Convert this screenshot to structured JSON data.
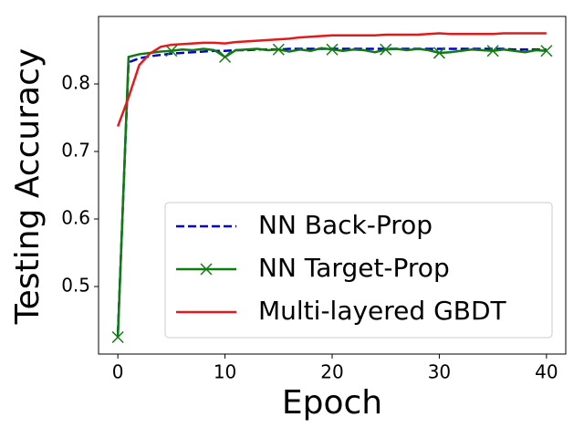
{
  "chart_data": {
    "type": "line",
    "xlabel": "Epoch",
    "ylabel": "Testing Accuracy",
    "x": [
      0,
      1,
      2,
      3,
      4,
      5,
      6,
      7,
      8,
      9,
      10,
      11,
      12,
      13,
      14,
      15,
      16,
      17,
      18,
      19,
      20,
      21,
      22,
      23,
      24,
      25,
      26,
      27,
      28,
      29,
      30,
      31,
      32,
      33,
      34,
      35,
      36,
      37,
      38,
      39,
      40
    ],
    "series": [
      {
        "name": "NN Back-Prop",
        "color": "#0000cc",
        "dash": "dashed",
        "values": [
          0.43,
          0.832,
          0.838,
          0.841,
          0.843,
          0.845,
          0.846,
          0.847,
          0.848,
          0.849,
          0.849,
          0.85,
          0.85,
          0.851,
          0.851,
          0.851,
          0.852,
          0.852,
          0.852,
          0.852,
          0.852,
          0.852,
          0.852,
          0.852,
          0.852,
          0.852,
          0.852,
          0.852,
          0.852,
          0.852,
          0.852,
          0.852,
          0.852,
          0.852,
          0.852,
          0.852,
          0.852,
          0.851,
          0.851,
          0.851,
          0.851
        ]
      },
      {
        "name": "NN Target-Prop",
        "color": "#107c10",
        "marker": "x",
        "markevery": 5,
        "values": [
          0.425,
          0.84,
          0.844,
          0.846,
          0.848,
          0.849,
          0.851,
          0.85,
          0.852,
          0.85,
          0.84,
          0.85,
          0.851,
          0.852,
          0.85,
          0.851,
          0.848,
          0.851,
          0.849,
          0.853,
          0.851,
          0.849,
          0.851,
          0.85,
          0.847,
          0.851,
          0.852,
          0.85,
          0.852,
          0.85,
          0.846,
          0.847,
          0.849,
          0.851,
          0.85,
          0.849,
          0.851,
          0.849,
          0.847,
          0.85,
          0.849
        ]
      },
      {
        "name": "Multi-layered GBDT",
        "color": "#e31a1c",
        "values": [
          0.737,
          0.78,
          0.828,
          0.845,
          0.855,
          0.858,
          0.859,
          0.86,
          0.861,
          0.861,
          0.86,
          0.862,
          0.863,
          0.864,
          0.865,
          0.866,
          0.867,
          0.869,
          0.87,
          0.871,
          0.872,
          0.872,
          0.872,
          0.872,
          0.872,
          0.873,
          0.873,
          0.873,
          0.873,
          0.874,
          0.875,
          0.874,
          0.874,
          0.874,
          0.874,
          0.874,
          0.875,
          0.875,
          0.875,
          0.875,
          0.875
        ]
      }
    ],
    "xlim": [
      -1.8,
      41.8
    ],
    "xticks": [
      0,
      10,
      20,
      30,
      40
    ],
    "ylim": [
      0.4,
      0.9
    ],
    "yticks": [
      0.5,
      0.6,
      0.7,
      0.8
    ],
    "grid": false,
    "legend": "lower right"
  }
}
